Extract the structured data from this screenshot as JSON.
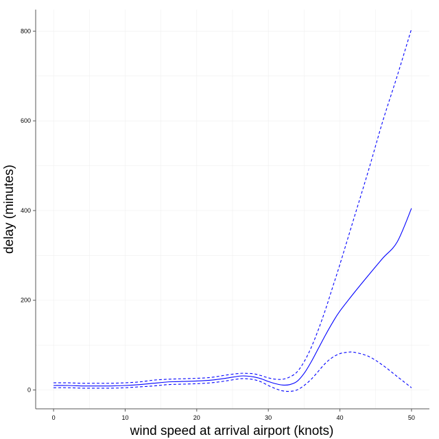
{
  "chart_data": {
    "type": "line",
    "title": "",
    "xlabel": "wind speed at arrival airport (knots)",
    "ylabel": "delay (minutes)",
    "xlim": [
      -2.5,
      52.5
    ],
    "ylim": [
      -42,
      848
    ],
    "x_ticks": [
      0,
      10,
      20,
      30,
      40,
      50
    ],
    "y_ticks": [
      0,
      200,
      400,
      600,
      800
    ],
    "grid": true,
    "line_color": "#0000ff",
    "series": [
      {
        "role": "estimate",
        "style": "solid",
        "x": [
          0,
          2,
          4,
          6,
          8,
          10,
          12,
          14,
          16,
          18,
          20,
          22,
          24,
          26,
          27,
          28,
          29,
          30,
          31,
          32,
          33,
          34,
          35,
          36,
          37,
          38,
          39,
          40,
          42,
          44,
          46,
          48,
          50
        ],
        "y": [
          10,
          10,
          9,
          9,
          9,
          10,
          12,
          15,
          18,
          19,
          20,
          22,
          26,
          31,
          31,
          29,
          25,
          19,
          14,
          11,
          12,
          19,
          37,
          63,
          93,
          123,
          151,
          176,
          217,
          256,
          294,
          330,
          405
        ]
      },
      {
        "role": "upper",
        "style": "dashed",
        "x": [
          0,
          2,
          4,
          6,
          8,
          10,
          12,
          14,
          16,
          18,
          20,
          22,
          24,
          26,
          27,
          28,
          29,
          30,
          31,
          32,
          33,
          34,
          35,
          36,
          37,
          38,
          39,
          40,
          42,
          44,
          46,
          48,
          50
        ],
        "y": [
          16,
          16,
          15,
          15,
          15,
          16,
          18,
          22,
          24,
          25,
          26,
          28,
          33,
          37,
          37,
          36,
          32,
          27,
          24,
          24,
          29,
          40,
          63,
          95,
          135,
          180,
          230,
          280,
          385,
          490,
          600,
          700,
          805
        ]
      },
      {
        "role": "lower",
        "style": "dashed",
        "x": [
          0,
          2,
          4,
          6,
          8,
          10,
          12,
          14,
          16,
          18,
          20,
          22,
          24,
          26,
          27,
          28,
          29,
          30,
          31,
          32,
          33,
          34,
          35,
          36,
          37,
          38,
          39,
          40,
          41,
          42,
          44,
          46,
          48,
          50
        ],
        "y": [
          5,
          5,
          4,
          4,
          4,
          5,
          7,
          9,
          12,
          13,
          14,
          16,
          20,
          25,
          25,
          23,
          18,
          10,
          3,
          -2,
          -3,
          0,
          10,
          24,
          42,
          60,
          73,
          81,
          84,
          84,
          75,
          55,
          30,
          5
        ]
      }
    ]
  }
}
